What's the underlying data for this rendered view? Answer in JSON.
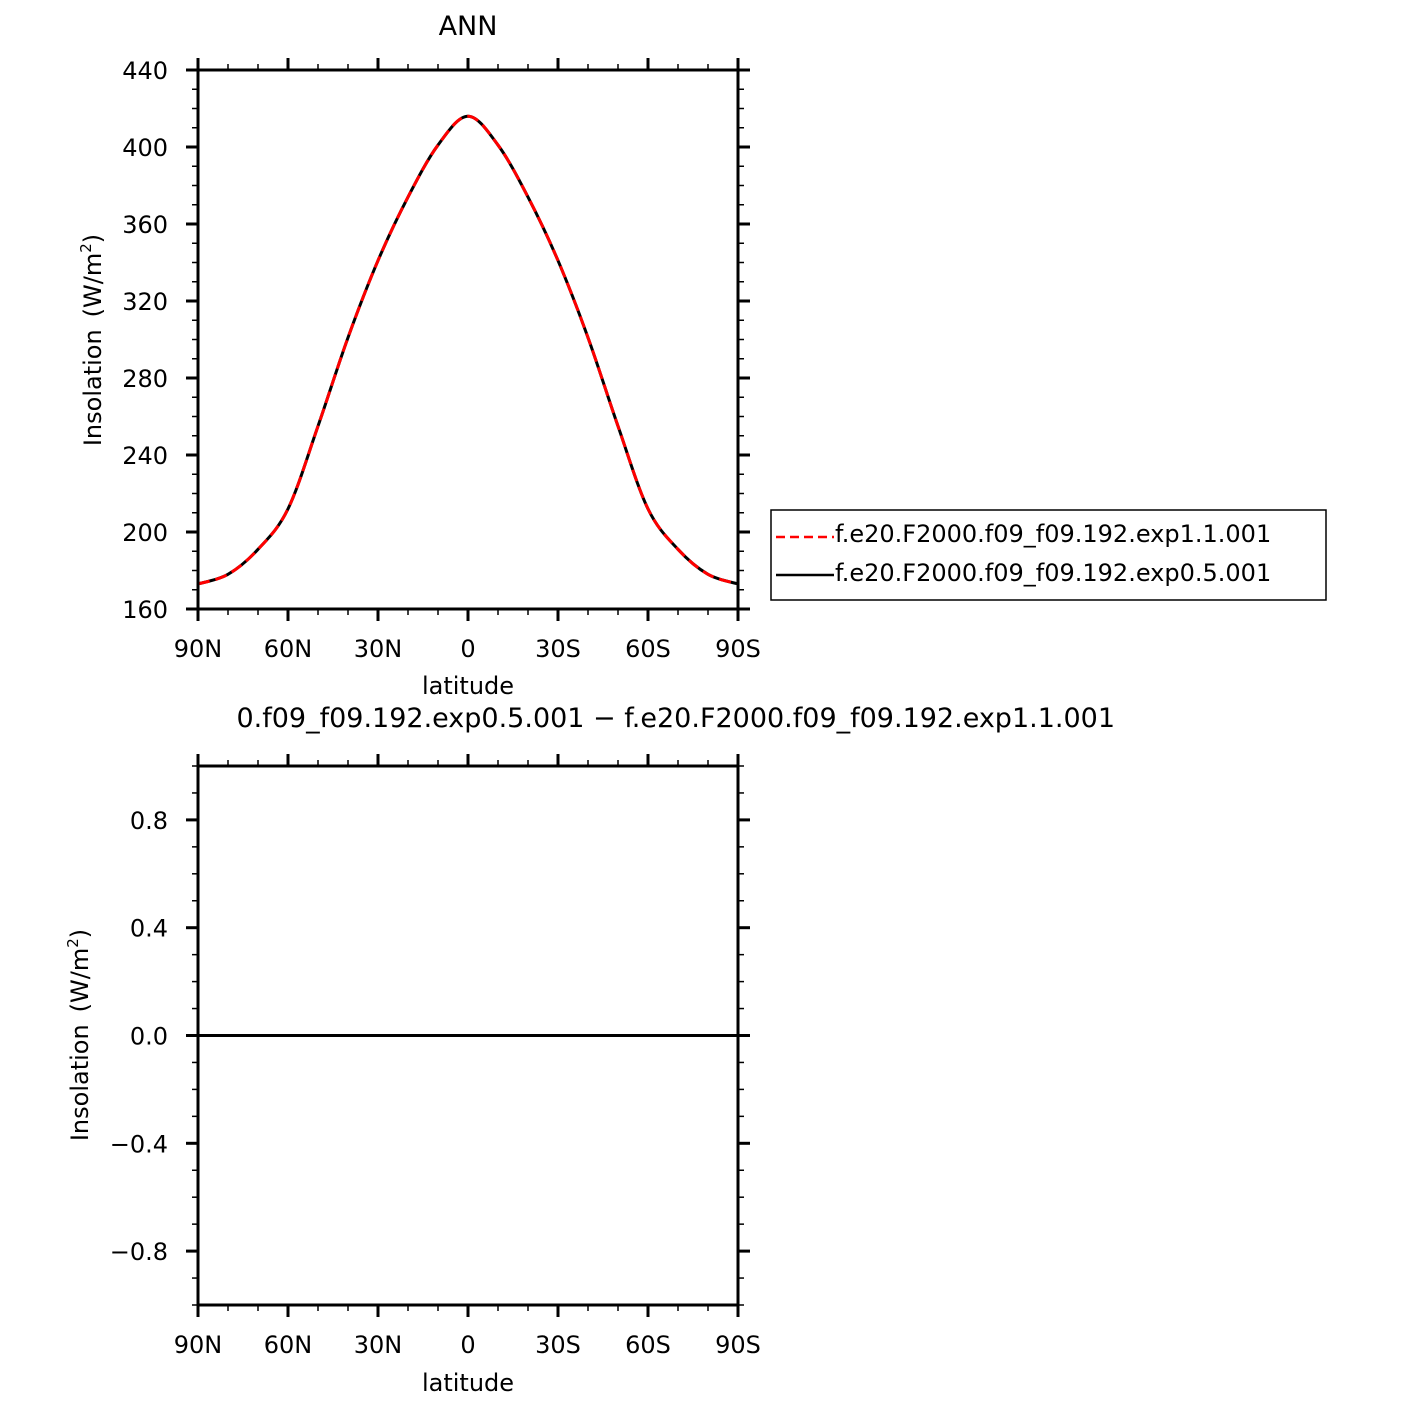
{
  "chart_data": [
    {
      "type": "line",
      "title": "ANN",
      "xlabel": "latitude",
      "ylabel": "Insolation",
      "ylabel_unit": "(W/m",
      "ylabel_unit_sup": "2",
      "ylabel_unit_close": ")",
      "xlim": [
        90,
        -90
      ],
      "ylim": [
        160,
        440
      ],
      "x_ticks": [
        {
          "value": 90,
          "label": "90N"
        },
        {
          "value": 60,
          "label": "60N"
        },
        {
          "value": 30,
          "label": "30N"
        },
        {
          "value": 0,
          "label": "0"
        },
        {
          "value": -30,
          "label": "30S"
        },
        {
          "value": -60,
          "label": "60S"
        },
        {
          "value": -90,
          "label": "90S"
        }
      ],
      "y_ticks": [
        {
          "value": 160,
          "label": "160"
        },
        {
          "value": 200,
          "label": "200"
        },
        {
          "value": 240,
          "label": "240"
        },
        {
          "value": 280,
          "label": "280"
        },
        {
          "value": 320,
          "label": "320"
        },
        {
          "value": 360,
          "label": "360"
        },
        {
          "value": 400,
          "label": "400"
        },
        {
          "value": 440,
          "label": "440"
        }
      ],
      "x": [
        90,
        80,
        70,
        60,
        50,
        40,
        30,
        20,
        10,
        0,
        -10,
        -20,
        -30,
        -40,
        -50,
        -60,
        -70,
        -80,
        -90
      ],
      "series": [
        {
          "name": "f.e20.F2000.f09_f09.192.exp1.1.001",
          "color": "#ff0000",
          "dash": "dashed",
          "values": [
            173,
            178,
            191,
            212,
            255,
            301,
            341,
            374,
            401,
            416,
            401,
            374,
            341,
            301,
            255,
            212,
            191,
            178,
            173
          ]
        },
        {
          "name": "f.e20.F2000.f09_f09.192.exp0.5.001",
          "color": "#000000",
          "dash": "solid",
          "values": [
            173,
            178,
            191,
            212,
            255,
            301,
            341,
            374,
            401,
            416,
            401,
            374,
            341,
            301,
            255,
            212,
            191,
            178,
            173
          ]
        }
      ],
      "legend": "right"
    },
    {
      "type": "line",
      "title": "0.f09_f09.192.exp0.5.001  −  f.e20.F2000.f09_f09.192.exp1.1.001",
      "xlabel": "latitude",
      "ylabel": "Insolation",
      "ylabel_unit": "(W/m",
      "ylabel_unit_sup": "2",
      "ylabel_unit_close": ")",
      "xlim": [
        90,
        -90
      ],
      "ylim": [
        -1,
        1
      ],
      "x_ticks": [
        {
          "value": 90,
          "label": "90N"
        },
        {
          "value": 60,
          "label": "60N"
        },
        {
          "value": 30,
          "label": "30N"
        },
        {
          "value": 0,
          "label": "0"
        },
        {
          "value": -30,
          "label": "30S"
        },
        {
          "value": -60,
          "label": "60S"
        },
        {
          "value": -90,
          "label": "90S"
        }
      ],
      "y_ticks": [
        {
          "value": -0.8,
          "label": "−0.8"
        },
        {
          "value": -0.4,
          "label": "−0.4"
        },
        {
          "value": 0,
          "label": "0.0"
        },
        {
          "value": 0.4,
          "label": "0.4"
        },
        {
          "value": 0.8,
          "label": "0.8"
        }
      ],
      "x": [
        90,
        0,
        -90
      ],
      "series": [
        {
          "color": "#000000",
          "dash": "solid",
          "values": [
            0,
            0,
            0
          ]
        }
      ]
    }
  ]
}
